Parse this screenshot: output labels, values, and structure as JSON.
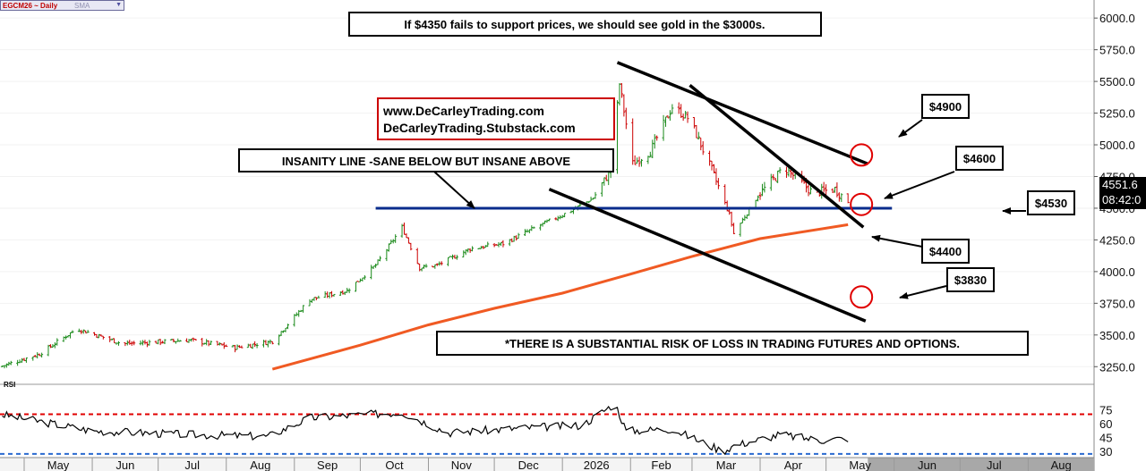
{
  "header": {
    "symbol": "EGCM26 ~ Daily",
    "indicator": "SMA",
    "dropdown_icon": "chevron-down-icon"
  },
  "last_price": "4551.6",
  "time_remaining": "08:42:0",
  "annotations": {
    "headline": "If $4350 fails to support prices, we should see gold in the $3000s.",
    "website_1": "www.DeCarleyTrading.com",
    "website_2": "DeCarleyTrading.Stubstack.com",
    "insanity": "INSANITY LINE -SANE BELOW BUT INSANE ABOVE",
    "disclaimer": "*THERE IS A SUBSTANTIAL RISK OF LOSS IN TRADING FUTURES AND OPTIONS.",
    "targets": [
      {
        "label": "$4900"
      },
      {
        "label": "$4600"
      },
      {
        "label": "$4530"
      },
      {
        "label": "$4400"
      },
      {
        "label": "$3830"
      }
    ]
  },
  "colors": {
    "up_candle": "#1a8a1a",
    "down_candle": "#cc0000",
    "sma": "#f05a23",
    "insanity_line": "#0a2c8c",
    "rsi_upper": "#e00000",
    "rsi_lower": "#2a6ad0",
    "circle": "#e00000"
  },
  "chart_data": {
    "type": "line",
    "x_axis": {
      "tick_labels": [
        "May",
        "Jun",
        "Jul",
        "Aug",
        "Sep",
        "Oct",
        "Nov",
        "Dec",
        "2026",
        "Feb",
        "Mar",
        "Apr",
        "May",
        "Jun",
        "Jul",
        "Aug"
      ]
    },
    "y_axis": {
      "range": [
        3125,
        6100
      ],
      "tick_values": [
        3250,
        3500,
        3750,
        4000,
        4250,
        4500,
        4750,
        5000,
        5250,
        5500,
        5750,
        6000
      ],
      "tick_labels": [
        "3250.0",
        "3500.0",
        "3750.0",
        "4000.0",
        "4250.0",
        "4500.0",
        "4750.0",
        "5000.0",
        "5250.0",
        "5500.0",
        "5750.0",
        "6000.0"
      ]
    },
    "price_anchors": {
      "x": [
        "2025-04-20",
        "2025-05-08",
        "2025-05-25",
        "2025-06-15",
        "2025-07-15",
        "2025-08-05",
        "2025-08-22",
        "2025-09-08",
        "2025-09-25",
        "2025-10-08",
        "2025-10-20",
        "2025-10-28",
        "2025-11-05",
        "2025-11-20",
        "2025-12-05",
        "2025-12-20",
        "2026-01-05",
        "2026-01-15",
        "2026-01-23",
        "2026-01-27",
        "2026-02-02",
        "2026-02-10",
        "2026-02-20",
        "2026-02-28",
        "2026-03-10",
        "2026-03-18",
        "2026-03-20",
        "2026-03-31",
        "2026-04-12",
        "2026-04-25",
        "2026-05-05",
        "2026-05-11"
      ],
      "close": [
        3250,
        3350,
        3550,
        3430,
        3460,
        3400,
        3450,
        3780,
        3850,
        4050,
        4350,
        4030,
        4050,
        4180,
        4220,
        4350,
        4480,
        4580,
        4800,
        5480,
        4850,
        4950,
        5300,
        5200,
        4800,
        4450,
        4300,
        4600,
        4820,
        4620,
        4650,
        4551.6
      ]
    },
    "sma_line": {
      "x": [
        "2025-08-22",
        "2025-10-01",
        "2025-11-01",
        "2025-12-01",
        "2026-01-01",
        "2026-02-01",
        "2026-03-01",
        "2026-04-01",
        "2026-05-11"
      ],
      "y": [
        3230,
        3420,
        3580,
        3710,
        3830,
        3980,
        4120,
        4260,
        4370
      ]
    },
    "rsi": {
      "levels": [
        75,
        60,
        45,
        30
      ],
      "overbought": 70,
      "oversold": 30,
      "label": "RSI",
      "x": [
        "2025-04-20",
        "2025-06-01",
        "2025-07-15",
        "2025-08-20",
        "2025-09-08",
        "2025-10-20",
        "2025-11-10",
        "2025-12-20",
        "2026-01-10",
        "2026-01-25",
        "2026-01-30",
        "2026-02-20",
        "2026-03-15",
        "2026-03-20",
        "2026-04-10",
        "2026-04-28",
        "2026-05-11"
      ],
      "y": [
        70,
        52,
        48,
        46,
        66,
        72,
        50,
        56,
        58,
        82,
        52,
        54,
        30,
        36,
        48,
        42,
        44
      ]
    },
    "trendlines": [
      {
        "name": "insanity line",
        "x": [
          "2025-10-08",
          "2026-05-31"
        ],
        "y": [
          4500,
          4500
        ]
      },
      {
        "x": [
          "2026-01-26",
          "2026-05-20"
        ],
        "y": [
          5650,
          4850
        ]
      },
      {
        "x": [
          "2026-02-28",
          "2026-05-18"
        ],
        "y": [
          5470,
          4350
        ]
      },
      {
        "x": [
          "2025-12-26",
          "2026-05-19"
        ],
        "y": [
          4650,
          3610
        ]
      }
    ]
  }
}
